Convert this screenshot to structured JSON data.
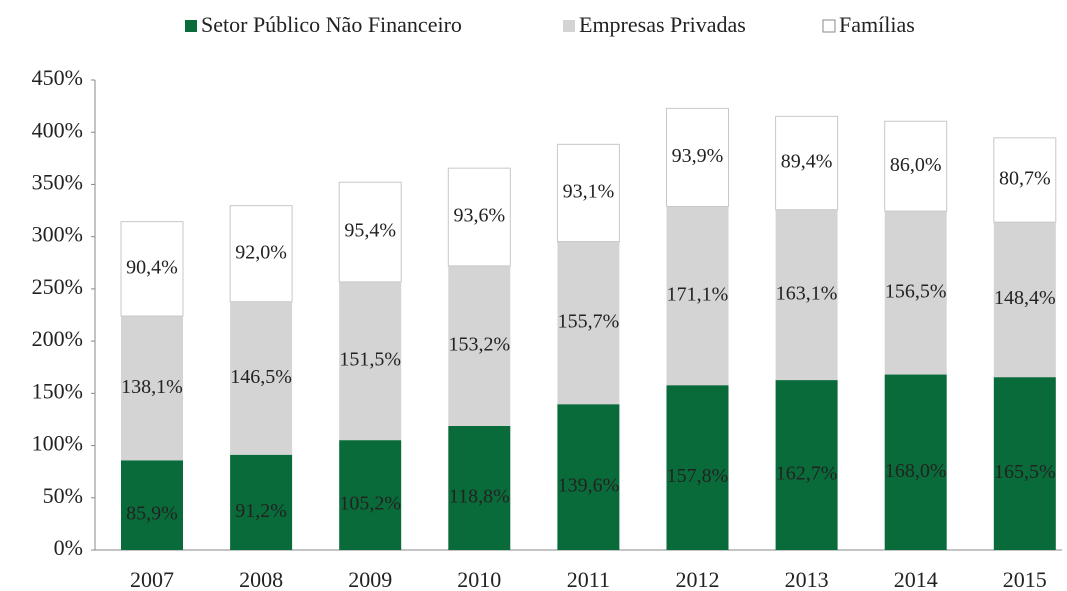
{
  "chart_data": {
    "type": "stacked-bar",
    "categories": [
      "2007",
      "2008",
      "2009",
      "2010",
      "2011",
      "2012",
      "2013",
      "2014",
      "2015"
    ],
    "series": [
      {
        "name": "Setor Público Não Financeiro",
        "color": "#0a6b3a",
        "label_color": "#ffffff",
        "values": [
          85.9,
          91.2,
          105.2,
          118.8,
          139.6,
          157.8,
          162.7,
          168.0,
          165.5
        ],
        "value_labels": [
          "85,9%",
          "91,2%",
          "105,2%",
          "118,8%",
          "139,6%",
          "157,8%",
          "162,7%",
          "168,0%",
          "165,5%"
        ]
      },
      {
        "name": "Empresas Privadas",
        "color": "#d4d4d4",
        "label_color": "#222222",
        "values": [
          138.1,
          146.5,
          151.5,
          153.2,
          155.7,
          171.1,
          163.1,
          156.5,
          148.4
        ],
        "value_labels": [
          "138,1%",
          "146,5%",
          "151,5%",
          "153,2%",
          "155,7%",
          "171,1%",
          "163,1%",
          "156,5%",
          "148,4%"
        ]
      },
      {
        "name": "Famílias",
        "color": "#ffffff",
        "label_color": "#222222",
        "values": [
          90.4,
          92.0,
          95.4,
          93.6,
          93.1,
          93.9,
          89.4,
          86.0,
          80.7
        ],
        "value_labels": [
          "90,4%",
          "92,0%",
          "95,4%",
          "93,6%",
          "93,1%",
          "93,9%",
          "89,4%",
          "86,0%",
          "80,7%"
        ]
      }
    ],
    "ylim": [
      0,
      450
    ],
    "yticks": [
      {
        "value": 0,
        "label": "0%"
      },
      {
        "value": 50,
        "label": "50%"
      },
      {
        "value": 100,
        "label": "100%"
      },
      {
        "value": 150,
        "label": "150%"
      },
      {
        "value": 200,
        "label": "200%"
      },
      {
        "value": 250,
        "label": "250%"
      },
      {
        "value": 300,
        "label": "300%"
      },
      {
        "value": 350,
        "label": "350%"
      },
      {
        "value": 400,
        "label": "400%"
      },
      {
        "value": 450,
        "label": "450%"
      }
    ],
    "legend": "top"
  }
}
